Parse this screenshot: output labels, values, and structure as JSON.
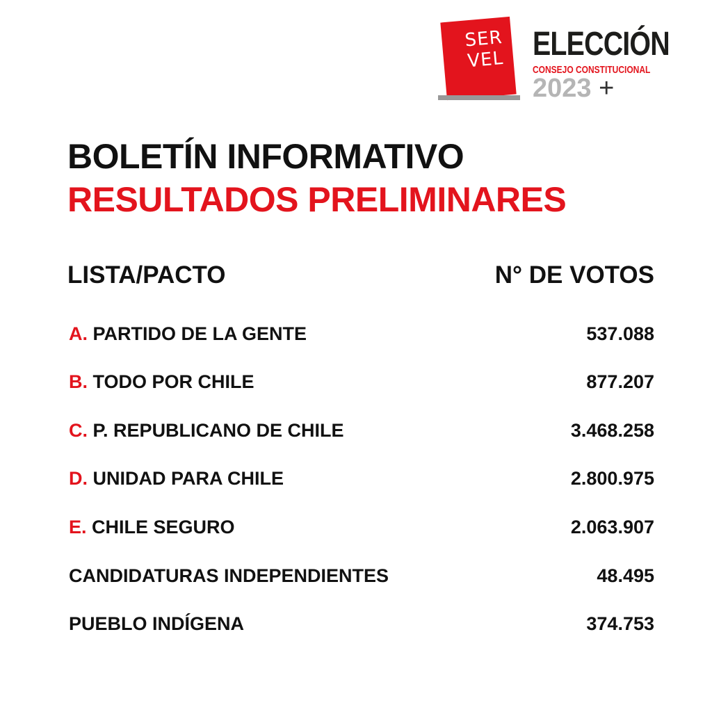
{
  "logo": {
    "servel_top": "SER",
    "servel_bottom": "VEL",
    "title": "ELECCIÓN",
    "subtitle": "CONSEJO CONSTITUCIONAL",
    "year": "2023",
    "plus": "+"
  },
  "heading": {
    "line1": "BOLETÍN INFORMATIVO",
    "line2": "RESULTADOS PRELIMINARES"
  },
  "table": {
    "col1": "LISTA/PACTO",
    "col2": "N° DE VOTOS",
    "rows": [
      {
        "letter": "A.",
        "name": "PARTIDO DE LA GENTE",
        "votes": "537.088"
      },
      {
        "letter": "B.",
        "name": "TODO POR CHILE",
        "votes": "877.207"
      },
      {
        "letter": "C.",
        "name": "P. REPUBLICANO DE CHILE",
        "votes": "3.468.258"
      },
      {
        "letter": "D.",
        "name": "UNIDAD PARA CHILE",
        "votes": "2.800.975"
      },
      {
        "letter": "E.",
        "name": "CHILE SEGURO",
        "votes": "2.063.907"
      },
      {
        "letter": "",
        "name": "CANDIDATURAS INDEPENDIENTES",
        "votes": "48.495"
      },
      {
        "letter": "",
        "name": "PUEBLO INDÍGENA",
        "votes": "374.753"
      }
    ]
  },
  "colors": {
    "accent": "#e3141d",
    "text": "#111111",
    "gray": "#b5b5b5"
  }
}
